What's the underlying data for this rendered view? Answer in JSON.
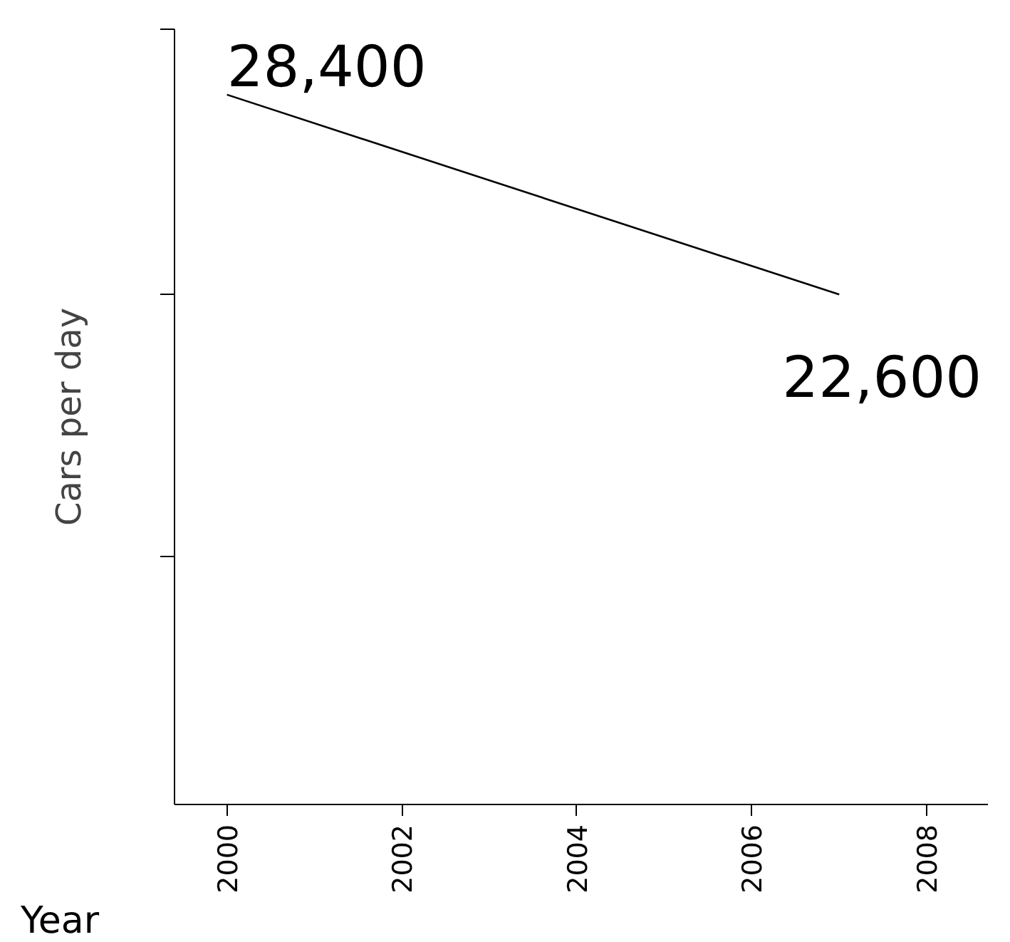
{
  "chart_data": {
    "type": "line",
    "xlabel": "Year",
    "ylabel": "Cars per day",
    "x": [
      2000,
      2007
    ],
    "series": [
      {
        "color": "#000000",
        "values": [
          28400,
          22600
        ],
        "value_labels": [
          "28,400",
          "22,600"
        ]
      }
    ],
    "xlim": [
      1999.4,
      2008.7
    ],
    "xticks": [
      2000,
      2002,
      2004,
      2006,
      2008
    ],
    "ylim": [
      7800,
      30300
    ],
    "yticks": [
      {
        "value": 15000,
        "label": null
      },
      {
        "value": 22600,
        "label": null
      },
      {
        "value": 30300,
        "label": null
      }
    ],
    "tick_labels": "x",
    "grid": false,
    "marker": "none",
    "line_style": "solid"
  }
}
